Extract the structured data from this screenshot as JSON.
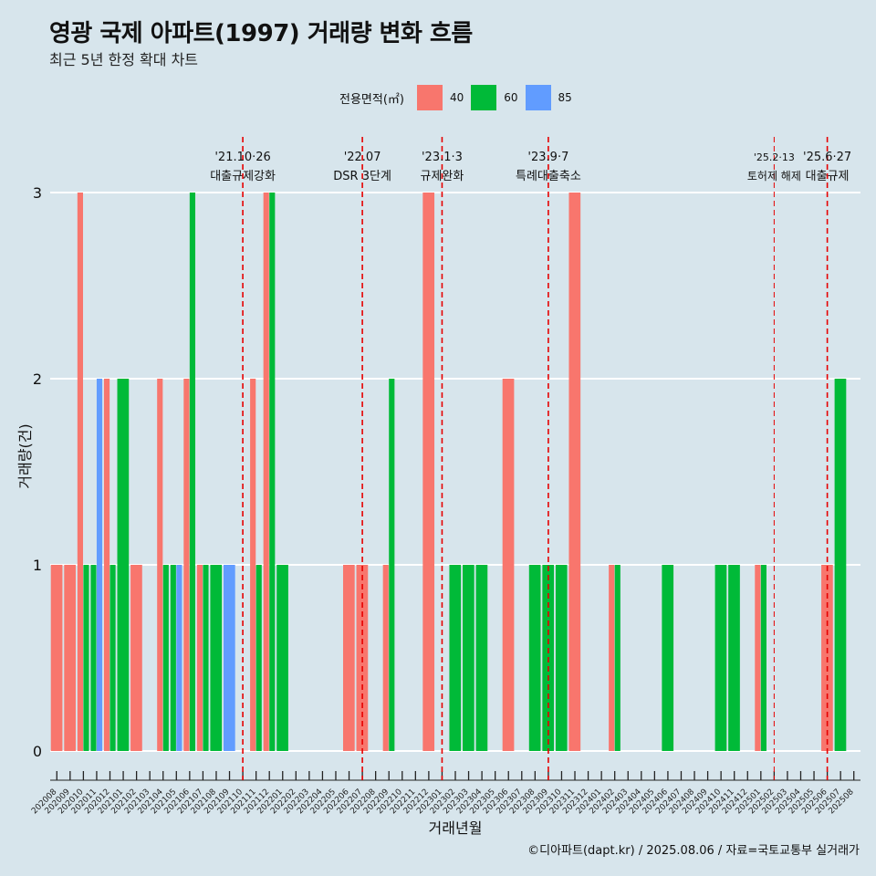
{
  "title": "영광 국제 아파트(1997) 거래량 변화 흐름",
  "subtitle": "최근 5년 한정 확대 차트",
  "caption": "©디아파트(dapt.kr) / 2025.08.06 / 자료=국토교통부 실거래가",
  "legend": {
    "title": "전용면적(㎡)",
    "items": [
      {
        "label": "40",
        "color": "#f8766d"
      },
      {
        "label": "60",
        "color": "#00ba38"
      },
      {
        "label": "85",
        "color": "#619cff"
      }
    ]
  },
  "chart_data": {
    "type": "bar",
    "xlabel": "거래년월",
    "ylabel": "거래량(건)",
    "ylim": [
      0,
      3
    ],
    "yticks": [
      0,
      1,
      2,
      3
    ],
    "grid": true,
    "legend_position": "top",
    "categories": [
      "202008",
      "202009",
      "202010",
      "202011",
      "202012",
      "202101",
      "202102",
      "202103",
      "202104",
      "202105",
      "202106",
      "202107",
      "202108",
      "202109",
      "202110",
      "202111",
      "202112",
      "202201",
      "202202",
      "202203",
      "202204",
      "202205",
      "202206",
      "202207",
      "202208",
      "202209",
      "202210",
      "202211",
      "202212",
      "202301",
      "202302",
      "202303",
      "202304",
      "202305",
      "202306",
      "202307",
      "202308",
      "202309",
      "202310",
      "202311",
      "202312",
      "202401",
      "202402",
      "202403",
      "202404",
      "202405",
      "202406",
      "202407",
      "202408",
      "202409",
      "202410",
      "202411",
      "202412",
      "202501",
      "202502",
      "202503",
      "202504",
      "202505",
      "202506",
      "202507",
      "202508"
    ],
    "series": [
      {
        "name": "40",
        "color": "#f8766d",
        "values": [
          1,
          1,
          3,
          0,
          2,
          0,
          1,
          0,
          2,
          0,
          2,
          1,
          0,
          0,
          0,
          2,
          3,
          0,
          0,
          0,
          0,
          0,
          1,
          1,
          0,
          1,
          0,
          0,
          3,
          0,
          0,
          0,
          0,
          0,
          2,
          0,
          0,
          0,
          0,
          3,
          0,
          0,
          1,
          0,
          0,
          0,
          0,
          0,
          0,
          0,
          0,
          0,
          0,
          1,
          0,
          0,
          0,
          0,
          1,
          0,
          0
        ]
      },
      {
        "name": "60",
        "color": "#00ba38",
        "values": [
          0,
          0,
          1,
          1,
          1,
          2,
          0,
          0,
          1,
          1,
          3,
          1,
          1,
          0,
          0,
          1,
          3,
          1,
          0,
          0,
          0,
          0,
          0,
          0,
          0,
          2,
          0,
          0,
          0,
          0,
          1,
          1,
          1,
          0,
          0,
          0,
          1,
          1,
          1,
          0,
          0,
          0,
          1,
          0,
          0,
          0,
          1,
          0,
          0,
          0,
          1,
          1,
          0,
          1,
          0,
          0,
          0,
          0,
          0,
          2,
          0
        ]
      },
      {
        "name": "85",
        "color": "#619cff",
        "values": [
          0,
          0,
          0,
          2,
          0,
          0,
          0,
          0,
          0,
          1,
          0,
          0,
          0,
          1,
          0,
          0,
          0,
          0,
          0,
          0,
          0,
          0,
          0,
          0,
          0,
          0,
          0,
          0,
          0,
          0,
          0,
          0,
          0,
          0,
          0,
          0,
          0,
          0,
          0,
          0,
          0,
          0,
          0,
          0,
          0,
          0,
          0,
          0,
          0,
          0,
          0,
          0,
          0,
          0,
          0,
          0,
          0,
          0,
          0,
          0,
          0
        ]
      }
    ],
    "annotations": [
      {
        "x": "202110",
        "label_top": "'21.10·26",
        "label_bottom": "대출규제강화"
      },
      {
        "x": "202207",
        "label_top": "'22.07",
        "label_bottom": "DSR 3단계"
      },
      {
        "x": "202301",
        "label_top": "'23.1·3",
        "label_bottom": "규제완화"
      },
      {
        "x": "202309",
        "label_top": "'23.9·7",
        "label_bottom": "특례대출축소"
      },
      {
        "x": "202502",
        "label_top": "'25.2·13",
        "label_bottom": "토허제 해제"
      },
      {
        "x": "202506",
        "label_top": "'25.6·27",
        "label_bottom": "대출규제"
      }
    ]
  }
}
